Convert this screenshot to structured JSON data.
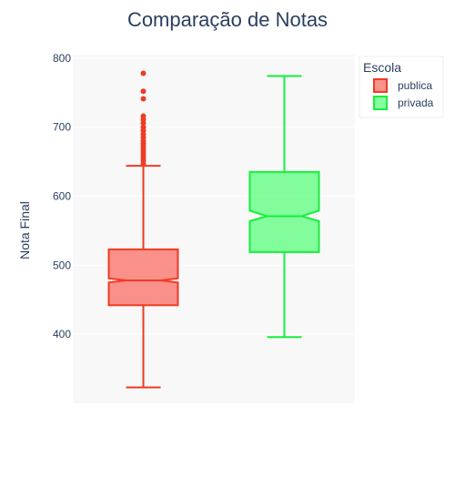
{
  "chart_data": {
    "type": "box",
    "title": "Comparação de Notas",
    "xlabel": "",
    "ylabel": "Nota Final",
    "ylim": [
      300,
      805
    ],
    "yticks": [
      400,
      500,
      600,
      700,
      800
    ],
    "notched": true,
    "legend": {
      "title": "Escola",
      "position": "top-right"
    },
    "series": [
      {
        "name": "publica",
        "color": "#ef3b24",
        "fill": "rgba(250,110,100,0.75)",
        "lower_fence": 323,
        "q1": 442,
        "median": 478,
        "q3": 523,
        "upper_fence": 644,
        "notch_low": 475,
        "notch_high": 481,
        "outliers": [
          647,
          652,
          656,
          660,
          664,
          668,
          672,
          676,
          680,
          685,
          690,
          695,
          700,
          706,
          711,
          716,
          741,
          752,
          778
        ]
      },
      {
        "name": "privada",
        "color": "#14f03c",
        "fill": "rgba(60,255,100,0.62)",
        "lower_fence": 396,
        "q1": 519,
        "median": 571,
        "q3": 635,
        "upper_fence": 774,
        "notch_low": 564,
        "notch_high": 579,
        "outliers": []
      }
    ]
  }
}
